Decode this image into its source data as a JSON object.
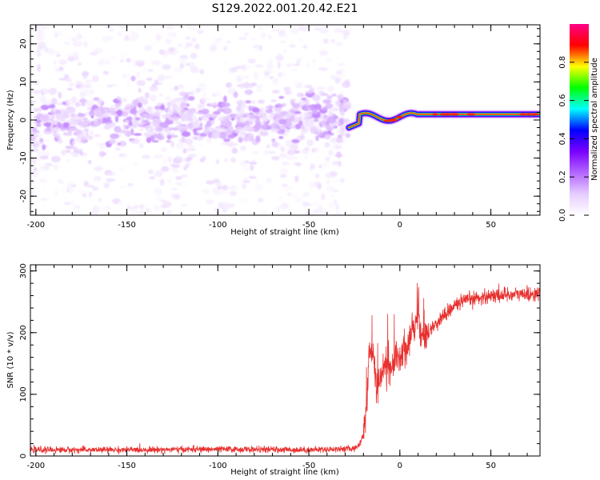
{
  "title": "S129.2022.001.20.42.E21",
  "chart_data": [
    {
      "type": "heatmap",
      "xlabel": "Height of straight line (km)",
      "ylabel": "Frequency (Hz)",
      "xlim": [
        -203,
        77
      ],
      "ylim": [
        -25,
        25
      ],
      "x_ticks": [
        -200,
        -150,
        -100,
        -50,
        0,
        50
      ],
      "y_ticks": [
        -20,
        -10,
        0,
        10,
        20
      ],
      "colorbar": {
        "label": "Normalized spectral amplitude",
        "range": [
          0,
          1
        ],
        "ticks": [
          0.0,
          0.2,
          0.4,
          0.6,
          0.8
        ],
        "colormap": [
          "#ffffff",
          "#e6ccff",
          "#b366ff",
          "#7a00ff",
          "#0000ff",
          "#00ffff",
          "#00ff00",
          "#ffff00",
          "#ff0000",
          "#ff0088"
        ]
      },
      "regions": [
        {
          "x_range": [
            -203,
            -28
          ],
          "description": "noise",
          "peak_freq_hz": 0,
          "amplitude_max": 0.15
        },
        {
          "x_range": [
            -28,
            77
          ],
          "description": "carrier line",
          "peak_freq_hz": 1.5,
          "amplitude_max": 0.95
        }
      ]
    },
    {
      "type": "line",
      "xlabel": "Height of straight line (km)",
      "ylabel": "SNR (10 * v/v)",
      "xlim": [
        -203,
        77
      ],
      "ylim": [
        0,
        310
      ],
      "x_ticks": [
        -200,
        -150,
        -100,
        -50,
        0,
        50
      ],
      "y_ticks": [
        0,
        100,
        200,
        300
      ],
      "color": "#e8302e",
      "series": [
        {
          "x": [
            -203,
            -150,
            -100,
            -50,
            -25,
            -22,
            -20,
            -19,
            -18,
            -17,
            -15,
            -12,
            -10,
            -8,
            -5,
            -3,
            0,
            3,
            5,
            8,
            10,
            12,
            15,
            20,
            25,
            30,
            35,
            40,
            50,
            60,
            70,
            77
          ],
          "y": [
            10,
            10,
            11,
            10,
            12,
            20,
            35,
            55,
            100,
            170,
            165,
            110,
            130,
            150,
            135,
            160,
            165,
            175,
            190,
            200,
            240,
            190,
            200,
            215,
            230,
            245,
            250,
            255,
            260,
            262,
            262,
            263
          ]
        }
      ]
    }
  ]
}
